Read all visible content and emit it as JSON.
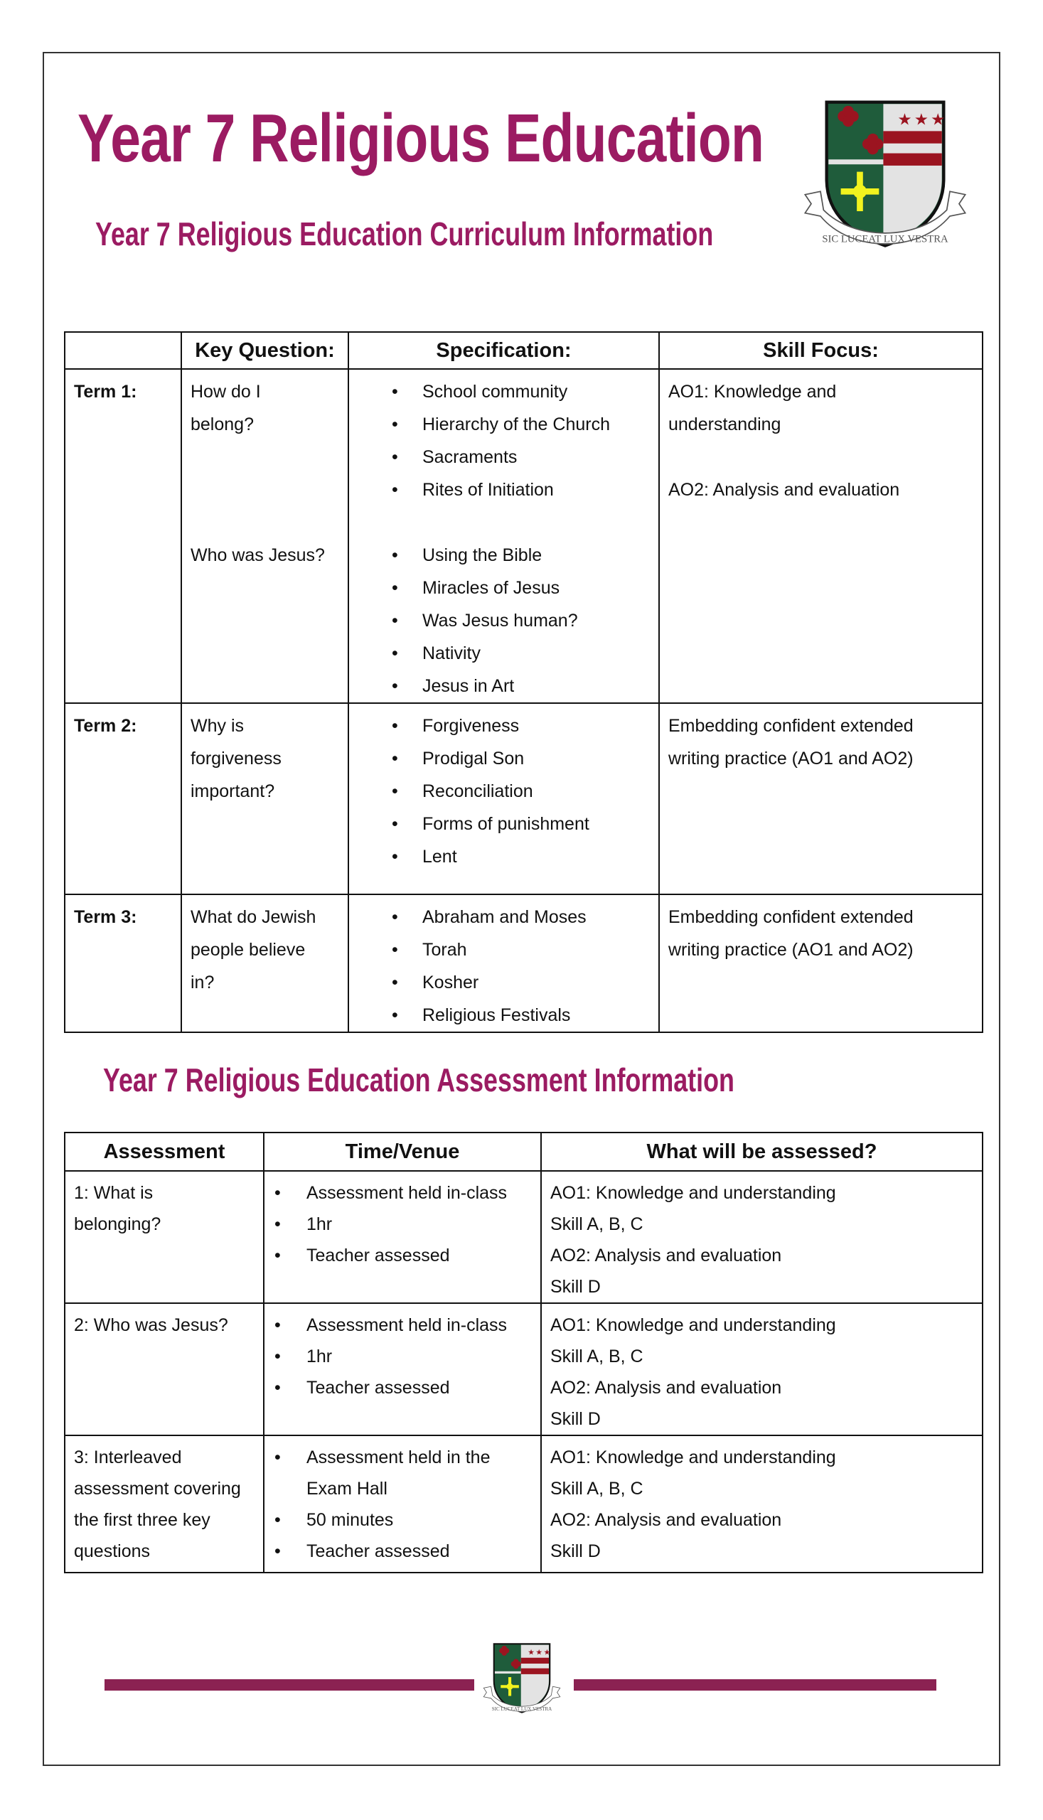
{
  "header": {
    "title": "Year 7 Religious Education",
    "subtitle": "Year 7 Religious Education Curriculum Information",
    "crest_motto": "SIC LUCEAT LUX VESTRA"
  },
  "curriculum": {
    "headers": [
      "",
      "Key Question:",
      "Specification:",
      "Skill Focus:"
    ],
    "rows": [
      {
        "term": "Term 1:",
        "groups": [
          {
            "question": [
              "How do I",
              "belong?"
            ],
            "spec": [
              "School community",
              "Hierarchy of the Church",
              "Sacraments",
              "Rites of Initiation"
            ],
            "skills": [
              "AO1: Knowledge and understanding",
              "AO2: Analysis and evaluation"
            ]
          },
          {
            "question": [
              "Who was Jesus?"
            ],
            "spec": [
              "Using the Bible",
              "Miracles of Jesus",
              "Was Jesus human?",
              "Nativity",
              "Jesus in Art"
            ]
          }
        ]
      },
      {
        "term": "Term 2:",
        "question": [
          "Why is",
          "forgiveness",
          "important?"
        ],
        "spec": [
          "Forgiveness",
          "Prodigal Son",
          "Reconciliation",
          "Forms of punishment",
          "Lent"
        ],
        "skills": [
          "Embedding confident extended writing practice (AO1 and AO2)"
        ]
      },
      {
        "term": "Term 3:",
        "question": [
          "What do Jewish",
          "people believe",
          "in?"
        ],
        "spec": [
          "Abraham and Moses",
          "Torah",
          "Kosher",
          "Religious Festivals"
        ],
        "skills": [
          "Embedding confident extended writing practice (AO1 and AO2)"
        ]
      }
    ]
  },
  "assessment": {
    "heading": "Year 7 Religious Education Assessment Information",
    "headers": [
      "Assessment",
      "Time/Venue",
      "What will be assessed?"
    ],
    "rows": [
      {
        "name": "1: What is belonging?",
        "time": [
          "Assessment held in-class",
          "1hr",
          "Teacher assessed"
        ],
        "assessed": [
          "AO1: Knowledge and understanding",
          "Skill A, B, C",
          "AO2: Analysis and evaluation",
          "Skill D"
        ]
      },
      {
        "name": "2: Who was Jesus?",
        "time": [
          "Assessment held in-class",
          "1hr",
          "Teacher assessed"
        ],
        "assessed": [
          "AO1: Knowledge and understanding",
          "Skill A, B, C",
          "AO2: Analysis and evaluation",
          "Skill D"
        ]
      },
      {
        "name": "3: Interleaved assessment covering the first three key questions",
        "time": [
          "Assessment held in the Exam Hall",
          "50 minutes",
          "Teacher assessed"
        ],
        "assessed": [
          "AO1: Knowledge and understanding",
          "Skill A, B, C",
          "AO2: Analysis and evaluation",
          "Skill D"
        ]
      }
    ]
  },
  "colors": {
    "accent": "#9b1b62",
    "footer_bar": "#8b2252",
    "crest_green": "#1f5c3b",
    "crest_red": "#9b1420",
    "crest_yellow": "#f2f21e"
  },
  "bullet": "•"
}
